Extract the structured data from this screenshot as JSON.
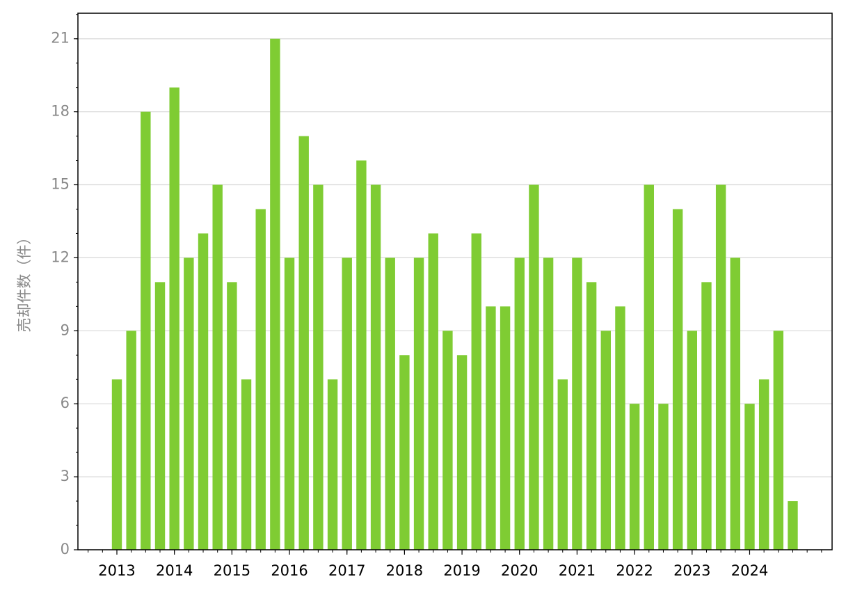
{
  "chart_data": {
    "type": "bar",
    "y_label": "売却件数（件）",
    "categories": [
      "2013",
      null,
      null,
      null,
      "2014",
      null,
      null,
      null,
      "2015",
      null,
      null,
      null,
      "2016",
      null,
      null,
      null,
      "2017",
      null,
      null,
      null,
      "2018",
      null,
      null,
      null,
      "2019",
      null,
      null,
      null,
      "2020",
      null,
      null,
      null,
      "2021",
      null,
      null,
      null,
      "2022",
      null,
      null,
      null,
      "2023",
      null,
      null,
      null,
      "2024",
      null,
      null,
      null
    ],
    "values": [
      7,
      9,
      18,
      11,
      19,
      12,
      13,
      15,
      11,
      7,
      14,
      21,
      12,
      17,
      15,
      7,
      12,
      16,
      15,
      12,
      8,
      12,
      13,
      9,
      8,
      13,
      10,
      10,
      12,
      15,
      12,
      7,
      12,
      11,
      9,
      10,
      6,
      15,
      6,
      14,
      9,
      11,
      15,
      12,
      6,
      7,
      9,
      2
    ],
    "color": "#7fcc33",
    "ylim": [
      0,
      22.05
    ],
    "yticks": [
      0,
      3,
      6,
      9,
      12,
      15,
      18,
      21
    ],
    "grid": true
  }
}
